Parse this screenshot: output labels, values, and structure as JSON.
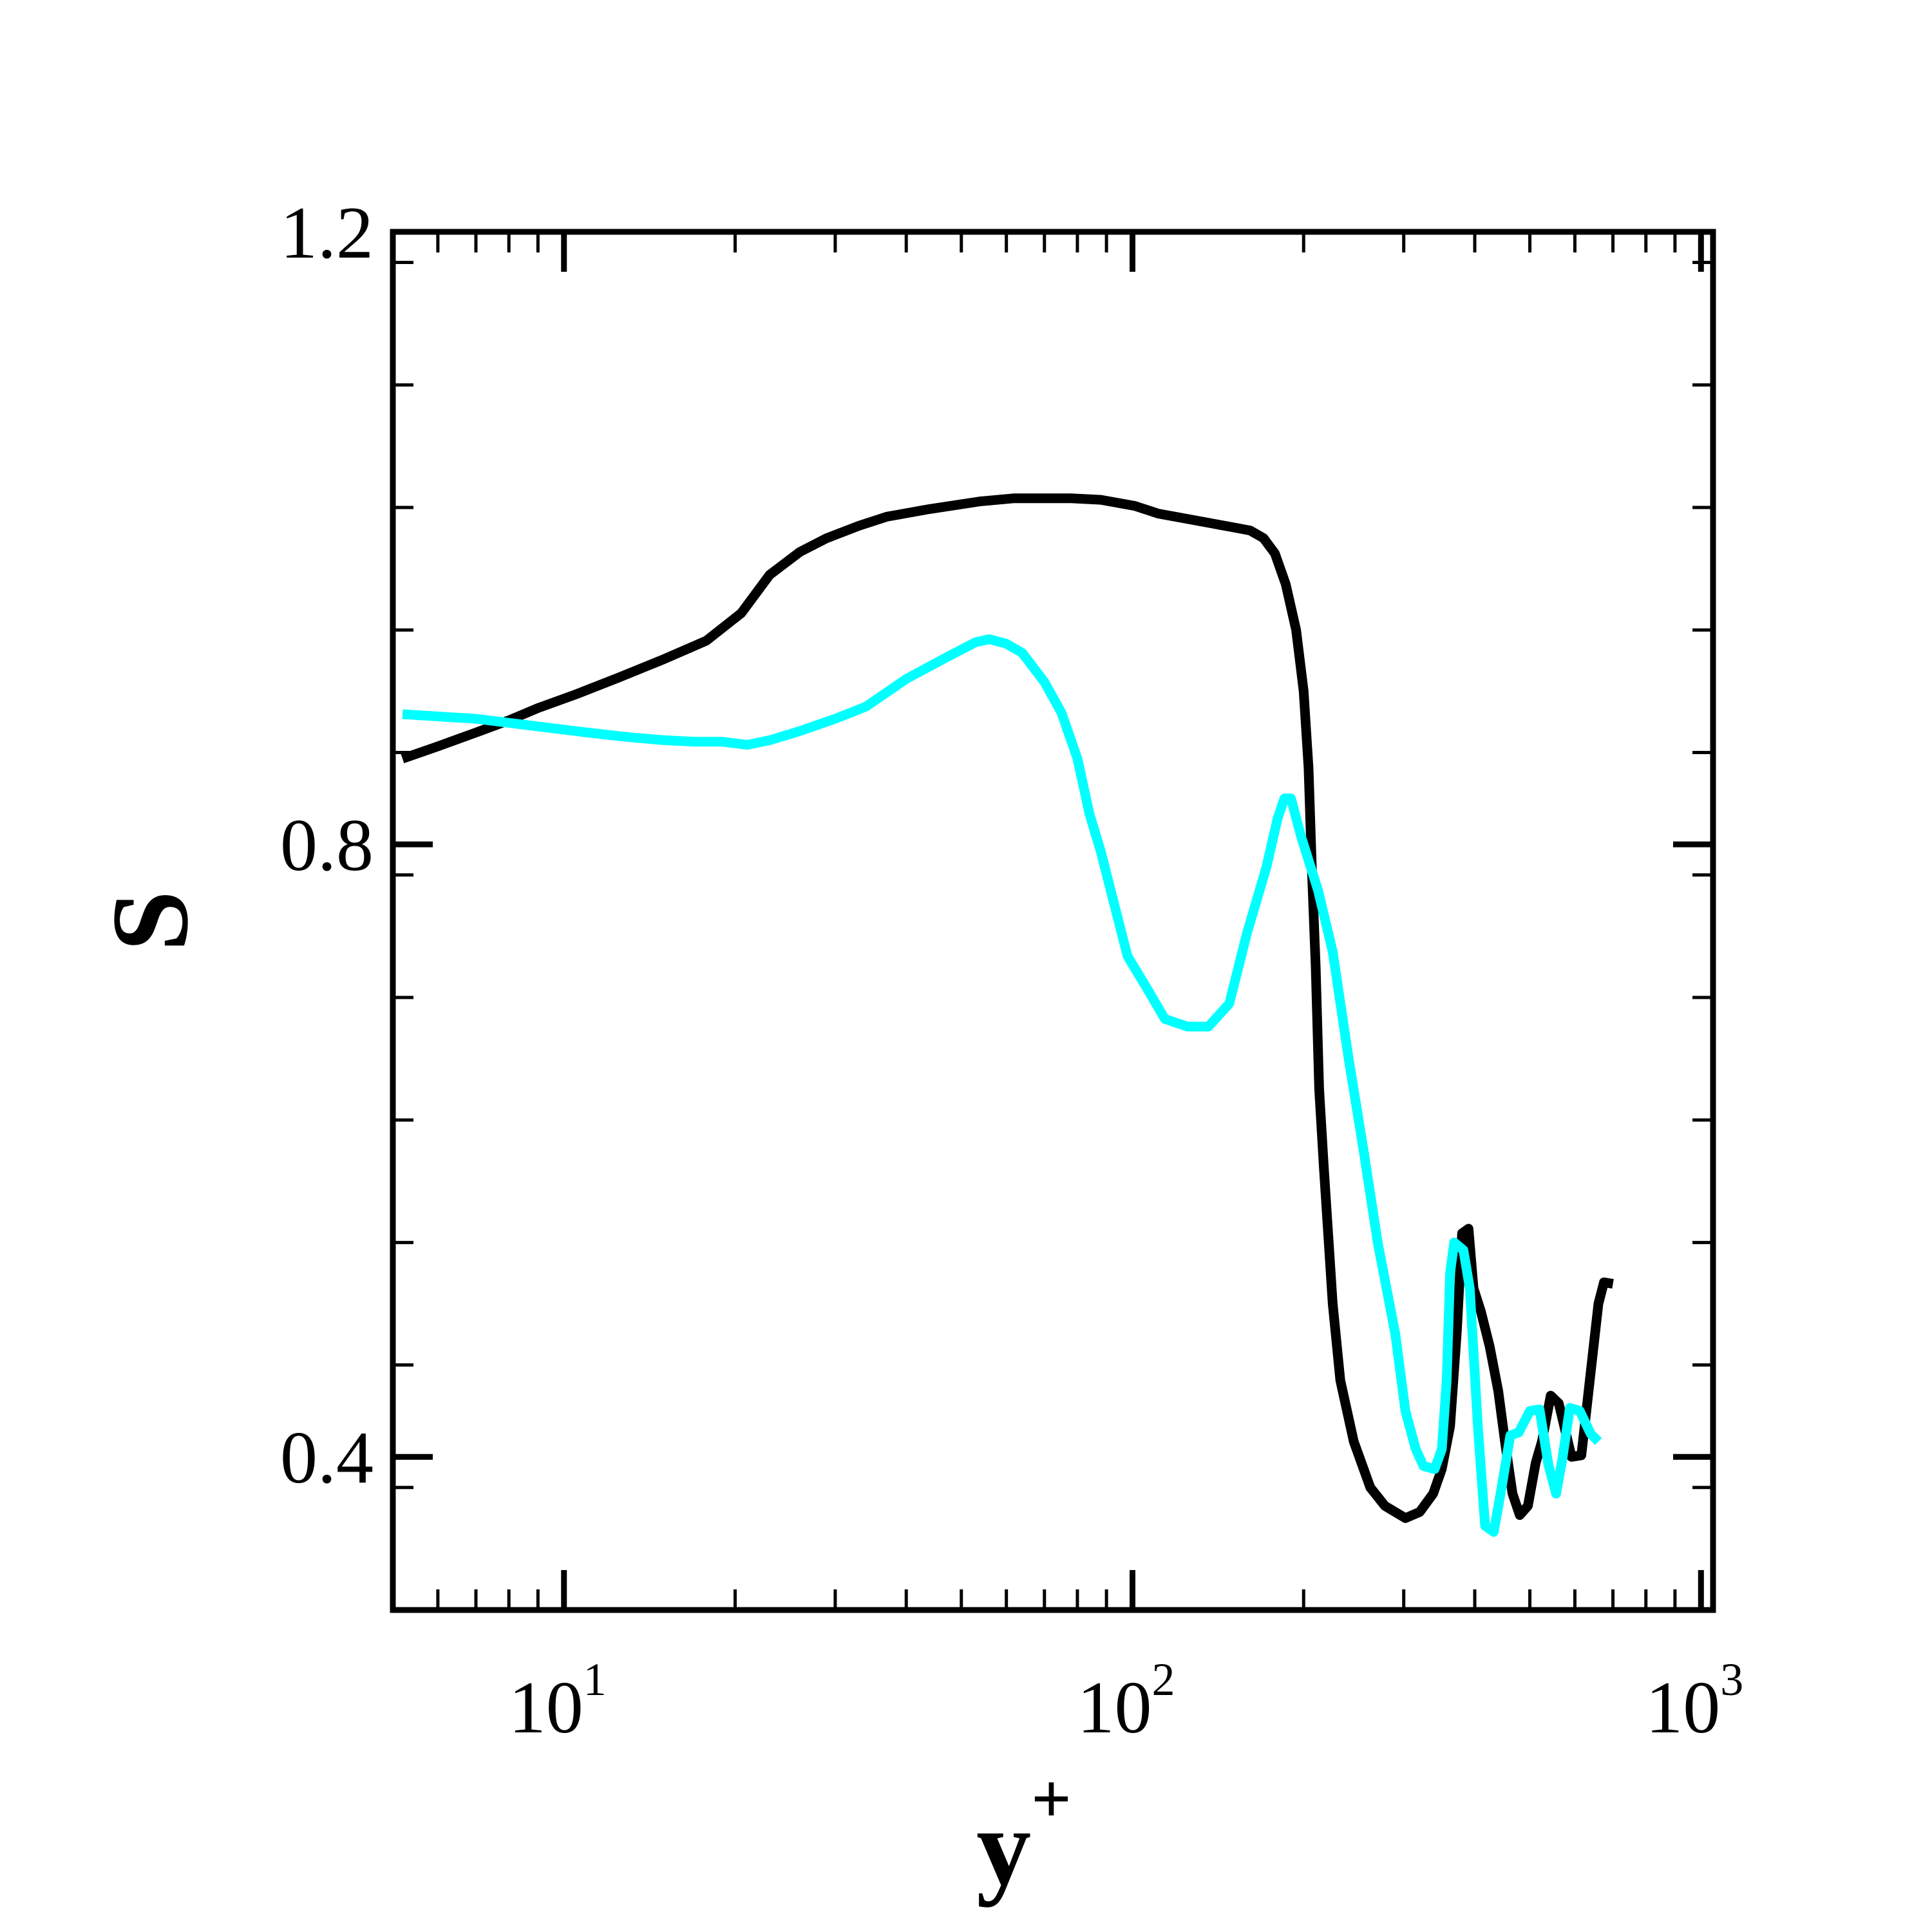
{
  "chart_data": {
    "type": "line",
    "xscale": "log",
    "xlim": [
      5,
      1050
    ],
    "ylim": [
      0.3,
      1.2
    ],
    "xlabel": "y",
    "xlabel_superscript": "+",
    "ylabel": "S",
    "x_ticks": [
      {
        "value": 10,
        "base": "10",
        "exponent": "1"
      },
      {
        "value": 100,
        "base": "10",
        "exponent": "2"
      },
      {
        "value": 1000,
        "base": "10",
        "exponent": "3"
      }
    ],
    "y_ticks": [
      {
        "value": 0.4,
        "label": "0.4"
      },
      {
        "value": 0.8,
        "label": "0.8"
      },
      {
        "value": 1.2,
        "label": "1.2"
      }
    ],
    "y_minor_step": 0.08,
    "grid": false,
    "series": [
      {
        "color": "#000000",
        "points": [
          [
            5.2,
            0.856
          ],
          [
            6.0,
            0.864
          ],
          [
            7.0,
            0.873
          ],
          [
            8.0,
            0.881
          ],
          [
            9.0,
            0.889
          ],
          [
            10.5,
            0.898
          ],
          [
            12.5,
            0.909
          ],
          [
            15.0,
            0.921
          ],
          [
            17.8,
            0.933
          ],
          [
            20.5,
            0.951
          ],
          [
            23.0,
            0.976
          ],
          [
            26.0,
            0.991
          ],
          [
            29.0,
            1.0
          ],
          [
            33.0,
            1.008
          ],
          [
            37.0,
            1.014
          ],
          [
            44.0,
            1.019
          ],
          [
            54.0,
            1.024
          ],
          [
            62.0,
            1.026
          ],
          [
            78.0,
            1.026
          ],
          [
            88.0,
            1.025
          ],
          [
            101.0,
            1.021
          ],
          [
            111.0,
            1.016
          ],
          [
            136.0,
            1.01
          ],
          [
            161.0,
            1.005
          ],
          [
            170.0,
            1.0
          ],
          [
            178.0,
            0.99
          ],
          [
            186.0,
            0.97
          ],
          [
            194.0,
            0.94
          ],
          [
            200.0,
            0.9
          ],
          [
            204.0,
            0.85
          ],
          [
            207.0,
            0.78
          ],
          [
            210.0,
            0.72
          ],
          [
            213.0,
            0.64
          ],
          [
            217.0,
            0.59
          ],
          [
            225.0,
            0.5
          ],
          [
            232.0,
            0.45
          ],
          [
            245.0,
            0.41
          ],
          [
            262.0,
            0.38
          ],
          [
            278.0,
            0.368
          ],
          [
            302.0,
            0.36
          ],
          [
            320.0,
            0.364
          ],
          [
            338.0,
            0.376
          ],
          [
            350.0,
            0.392
          ],
          [
            362.0,
            0.42
          ],
          [
            372.0,
            0.482
          ],
          [
            380.0,
            0.546
          ],
          [
            390.0,
            0.549
          ],
          [
            398.0,
            0.51
          ],
          [
            410.0,
            0.495
          ],
          [
            425.0,
            0.472
          ],
          [
            440.0,
            0.443
          ],
          [
            452.0,
            0.41
          ],
          [
            466.0,
            0.376
          ],
          [
            480.0,
            0.362
          ],
          [
            496.0,
            0.368
          ],
          [
            512.0,
            0.396
          ],
          [
            525.0,
            0.41
          ],
          [
            544.0,
            0.44
          ],
          [
            562.0,
            0.435
          ],
          [
            592.0,
            0.4
          ],
          [
            616.0,
            0.401
          ],
          [
            660.0,
            0.5
          ],
          [
            675.0,
            0.514
          ],
          [
            700.0,
            0.513
          ]
        ]
      },
      {
        "color": "#00ffff",
        "points": [
          [
            5.2,
            0.885
          ],
          [
            7.0,
            0.882
          ],
          [
            9.0,
            0.877
          ],
          [
            11.0,
            0.873
          ],
          [
            13.0,
            0.87
          ],
          [
            15.0,
            0.868
          ],
          [
            17.0,
            0.867
          ],
          [
            19.0,
            0.867
          ],
          [
            21.0,
            0.865
          ],
          [
            23.0,
            0.868
          ],
          [
            26.0,
            0.874
          ],
          [
            30.0,
            0.882
          ],
          [
            34.0,
            0.89
          ],
          [
            40.0,
            0.908
          ],
          [
            47.0,
            0.922
          ],
          [
            53.0,
            0.932
          ],
          [
            56.0,
            0.934
          ],
          [
            60.0,
            0.931
          ],
          [
            64.0,
            0.925
          ],
          [
            70.0,
            0.906
          ],
          [
            75.0,
            0.886
          ],
          [
            80.0,
            0.856
          ],
          [
            84.0,
            0.82
          ],
          [
            88.0,
            0.795
          ],
          [
            93.0,
            0.76
          ],
          [
            98.0,
            0.727
          ],
          [
            106.0,
            0.706
          ],
          [
            114.0,
            0.686
          ],
          [
            125.0,
            0.681
          ],
          [
            136.0,
            0.681
          ],
          [
            148.0,
            0.696
          ],
          [
            159.0,
            0.742
          ],
          [
            172.0,
            0.785
          ],
          [
            180.0,
            0.817
          ],
          [
            185.0,
            0.83
          ],
          [
            190.0,
            0.83
          ],
          [
            198.0,
            0.805
          ],
          [
            212.0,
            0.77
          ],
          [
            225.0,
            0.73
          ],
          [
            240.0,
            0.66
          ],
          [
            255.0,
            0.6
          ],
          [
            270.0,
            0.54
          ],
          [
            290.0,
            0.48
          ],
          [
            302.0,
            0.43
          ],
          [
            315.0,
            0.405
          ],
          [
            325.0,
            0.394
          ],
          [
            340.0,
            0.392
          ],
          [
            350.0,
            0.405
          ],
          [
            357.0,
            0.45
          ],
          [
            362.0,
            0.52
          ],
          [
            368.0,
            0.54
          ],
          [
            382.0,
            0.535
          ],
          [
            392.0,
            0.51
          ],
          [
            405.0,
            0.42
          ],
          [
            417.0,
            0.355
          ],
          [
            432.0,
            0.351
          ],
          [
            446.0,
            0.38
          ],
          [
            462.0,
            0.414
          ],
          [
            478.0,
            0.416
          ],
          [
            500.0,
            0.43
          ],
          [
            520.0,
            0.431
          ],
          [
            539.0,
            0.395
          ],
          [
            556.0,
            0.376
          ],
          [
            570.0,
            0.398
          ],
          [
            588.0,
            0.432
          ],
          [
            612.0,
            0.43
          ],
          [
            640.0,
            0.415
          ],
          [
            660.0,
            0.41
          ]
        ]
      }
    ]
  }
}
